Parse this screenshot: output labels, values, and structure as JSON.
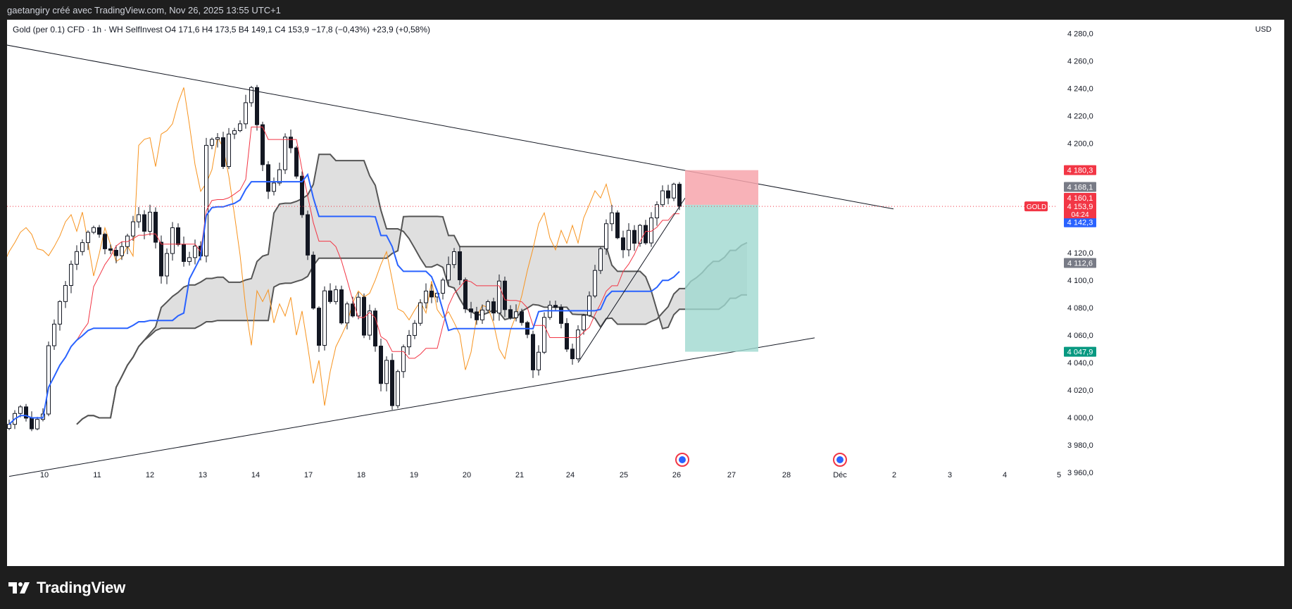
{
  "header": {
    "attribution": "gaetangiry créé avec TradingView.com, Nov 26, 2025 13:55 UTC+1"
  },
  "legend": {
    "text": "Gold (per 0.1) CFD · 1h · WH SelfInvest  O4 171,6  H4 173,5  B4 149,1  C4 153,9  −17,8 (−0,43%)  +23,9 (+0,58%)"
  },
  "currency": "USD",
  "footer": {
    "logo_text": "TradingView"
  },
  "colors": {
    "up": "#26a69a",
    "down": "#ef5350",
    "candle": "#131722",
    "tenkan": "#f23645",
    "kijun": "#2962ff",
    "chikou": "#f7931e",
    "cloud_line": "#555555",
    "cloud_fill": "#d9d9d9",
    "stop": "#f7a5ab",
    "target": "#9fd8cf"
  },
  "chart_data": {
    "type": "candlestick",
    "symbol": "GOLD",
    "timeframe": "1h",
    "ylim": [
      3945,
      4290
    ],
    "y_ticks": [
      3960,
      3980,
      4000,
      4020,
      4040,
      4060,
      4080,
      4100,
      4120,
      4200,
      4220,
      4240,
      4260,
      4280
    ],
    "y_tick_labels": [
      "3 960,0",
      "3 980,0",
      "4 000,0",
      "4 020,0",
      "4 040,0",
      "4 060,0",
      "4 080,0",
      "4 100,0",
      "4 120,0",
      "4 200,0",
      "4 220,0",
      "4 240,0",
      "4 260,0",
      "4 280,0"
    ],
    "x_labels": [
      "10",
      "11",
      "12",
      "13",
      "14",
      "17",
      "18",
      "19",
      "20",
      "21",
      "24",
      "25",
      "26",
      "27",
      "28",
      "Déc",
      "2",
      "3",
      "4",
      "5"
    ],
    "price_path": [
      [
        0,
        3995
      ],
      [
        2,
        4010
      ],
      [
        4,
        3992
      ],
      [
        6,
        4005
      ],
      [
        7,
        4050
      ],
      [
        9,
        4085
      ],
      [
        11,
        4110
      ],
      [
        13,
        4130
      ],
      [
        15,
        4140
      ],
      [
        17,
        4125
      ],
      [
        19,
        4118
      ],
      [
        21,
        4135
      ],
      [
        23,
        4145
      ],
      [
        24,
        4138
      ],
      [
        25,
        4150
      ],
      [
        26,
        4125
      ],
      [
        27,
        4105
      ],
      [
        28,
        4120
      ],
      [
        29,
        4138
      ],
      [
        30,
        4125
      ],
      [
        31,
        4115
      ],
      [
        33,
        4122
      ],
      [
        34,
        4118
      ],
      [
        35,
        4200
      ],
      [
        37,
        4205
      ],
      [
        38,
        4185
      ],
      [
        39,
        4205
      ],
      [
        41,
        4215
      ],
      [
        42,
        4232
      ],
      [
        43,
        4238
      ],
      [
        44,
        4215
      ],
      [
        45,
        4182
      ],
      [
        46,
        4165
      ],
      [
        48,
        4180
      ],
      [
        49,
        4205
      ],
      [
        50,
        4195
      ],
      [
        51,
        4175
      ],
      [
        52,
        4150
      ],
      [
        53,
        4120
      ],
      [
        54,
        4080
      ],
      [
        55,
        4055
      ],
      [
        56,
        4095
      ],
      [
        57,
        4085
      ],
      [
        58,
        4092
      ],
      [
        59,
        4068
      ],
      [
        60,
        4080
      ],
      [
        61,
        4075
      ],
      [
        62,
        4088
      ],
      [
        63,
        4060
      ],
      [
        64,
        4078
      ],
      [
        65,
        4050
      ],
      [
        66,
        4025
      ],
      [
        67,
        4042
      ],
      [
        68,
        4010
      ],
      [
        69,
        4035
      ],
      [
        70,
        4050
      ],
      [
        71,
        4062
      ],
      [
        72,
        4070
      ],
      [
        73,
        4082
      ],
      [
        74,
        4090
      ],
      [
        75,
        4085
      ],
      [
        76,
        4088
      ],
      [
        77,
        4098
      ],
      [
        78,
        4110
      ],
      [
        79,
        4120
      ],
      [
        80,
        4100
      ],
      [
        81,
        4082
      ],
      [
        82,
        4078
      ],
      [
        83,
        4072
      ],
      [
        84,
        4080
      ],
      [
        85,
        4085
      ],
      [
        86,
        4075
      ],
      [
        87,
        4098
      ],
      [
        88,
        4080
      ],
      [
        89,
        4070
      ],
      [
        90,
        4080
      ],
      [
        91,
        4070
      ],
      [
        92,
        4060
      ],
      [
        93,
        4035
      ],
      [
        94,
        4050
      ],
      [
        95,
        4070
      ],
      [
        96,
        4082
      ],
      [
        97,
        4078
      ],
      [
        98,
        4068
      ],
      [
        99,
        4050
      ],
      [
        100,
        4045
      ],
      [
        101,
        4062
      ],
      [
        102,
        4072
      ],
      [
        103,
        4090
      ],
      [
        104,
        4110
      ],
      [
        105,
        4125
      ],
      [
        106,
        4140
      ],
      [
        107,
        4148
      ],
      [
        108,
        4130
      ],
      [
        109,
        4120
      ],
      [
        110,
        4138
      ],
      [
        111,
        4125
      ],
      [
        112,
        4142
      ],
      [
        113,
        4130
      ],
      [
        114,
        4148
      ],
      [
        115,
        4158
      ],
      [
        116,
        4165
      ],
      [
        117,
        4158
      ],
      [
        118,
        4168
      ],
      [
        119,
        4154
      ]
    ],
    "candle_range": [
      0,
      119
    ],
    "x_axis_unit": "hours (1h bars)",
    "trendlines": [
      {
        "name": "upper",
        "from": [
          -5,
          4275
        ],
        "to": [
          157,
          4152
        ]
      },
      {
        "name": "lower",
        "from": [
          0,
          3957
        ],
        "to": [
          143,
          4058
        ]
      },
      {
        "name": "ascending",
        "from": [
          101,
          4040
        ],
        "to": [
          120,
          4160
        ]
      }
    ],
    "position": {
      "entry": 4155,
      "stop": 4180.3,
      "target": 4047.9,
      "bars": [
        120,
        133
      ]
    },
    "price_labels": [
      {
        "value": 4180.3,
        "text": "4 180,3",
        "color": "#f23645"
      },
      {
        "value": 4168.1,
        "text": "4 168,1",
        "color": "#787b86"
      },
      {
        "value": 4160.1,
        "text": "4 160,1",
        "color": "#f23645"
      },
      {
        "value": 4153.9,
        "text": "4 153,9",
        "color": "#f23645"
      },
      {
        "value": 4142.3,
        "text": "4 142,3",
        "color": "#2962ff"
      },
      {
        "value": 4112.6,
        "text": "4 112,6",
        "color": "#787b86"
      },
      {
        "value": 4047.9,
        "text": "4 047,9",
        "color": "#089981"
      }
    ],
    "countdown": "04:24",
    "symbol_tag": "GOLD",
    "last_price": 4153.9
  }
}
